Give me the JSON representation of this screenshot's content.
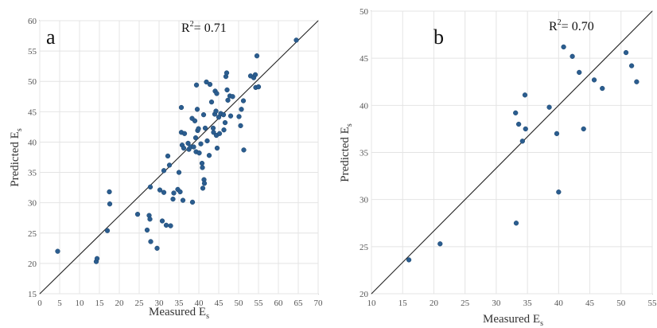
{
  "chart_data": [
    {
      "type": "scatter",
      "panel_label": "a",
      "annotation": {
        "r2_label": "R",
        "r2_sup": "2",
        "r2_value": "= 0.71"
      },
      "xlabel": "Measured",
      "xlabel_sub": "s",
      "xlabel_main": "E",
      "ylabel": "Predicted",
      "ylabel_main": "E",
      "ylabel_sub": "s",
      "xlim": [
        0,
        70
      ],
      "ylim": [
        15,
        60
      ],
      "xticks": [
        0,
        5,
        10,
        15,
        20,
        25,
        30,
        35,
        40,
        45,
        50,
        55,
        60,
        65,
        70
      ],
      "yticks": [
        15,
        20,
        25,
        30,
        35,
        40,
        45,
        50,
        55,
        60
      ],
      "grid": true,
      "reference_line": [
        [
          0,
          15
        ],
        [
          70,
          60
        ]
      ],
      "marker_color": "#2b5d8f",
      "points": [
        [
          4.5,
          22.0
        ],
        [
          14.2,
          20.3
        ],
        [
          14.4,
          20.8
        ],
        [
          17.0,
          25.4
        ],
        [
          17.5,
          31.8
        ],
        [
          17.6,
          29.8
        ],
        [
          24.6,
          28.1
        ],
        [
          27.0,
          25.5
        ],
        [
          27.5,
          27.9
        ],
        [
          27.7,
          27.3
        ],
        [
          27.8,
          32.6
        ],
        [
          27.9,
          23.6
        ],
        [
          29.5,
          22.5
        ],
        [
          30.2,
          32.1
        ],
        [
          31.2,
          31.7
        ],
        [
          30.8,
          27.0
        ],
        [
          31.2,
          35.3
        ],
        [
          31.8,
          26.3
        ],
        [
          32.2,
          37.7
        ],
        [
          32.6,
          36.2
        ],
        [
          32.9,
          26.2
        ],
        [
          33.7,
          31.6
        ],
        [
          33.5,
          30.6
        ],
        [
          34.7,
          32.2
        ],
        [
          35.0,
          35.0
        ],
        [
          35.3,
          31.8
        ],
        [
          35.6,
          45.7
        ],
        [
          35.6,
          41.6
        ],
        [
          35.8,
          39.5
        ],
        [
          36.0,
          30.4
        ],
        [
          36.2,
          39.0
        ],
        [
          36.4,
          41.4
        ],
        [
          37.3,
          39.8
        ],
        [
          37.5,
          38.8
        ],
        [
          37.9,
          39.2
        ],
        [
          38.3,
          43.9
        ],
        [
          38.4,
          30.1
        ],
        [
          38.7,
          39.2
        ],
        [
          39.0,
          43.5
        ],
        [
          39.2,
          40.7
        ],
        [
          39.4,
          49.4
        ],
        [
          39.3,
          38.4
        ],
        [
          39.6,
          45.4
        ],
        [
          39.7,
          41.9
        ],
        [
          39.9,
          42.2
        ],
        [
          40.1,
          38.2
        ],
        [
          40.5,
          39.7
        ],
        [
          40.8,
          36.5
        ],
        [
          40.9,
          35.8
        ],
        [
          41.0,
          32.4
        ],
        [
          41.2,
          44.5
        ],
        [
          41.3,
          33.8
        ],
        [
          41.4,
          33.2
        ],
        [
          41.6,
          42.3
        ],
        [
          41.9,
          49.9
        ],
        [
          42.1,
          40.2
        ],
        [
          42.6,
          37.8
        ],
        [
          42.8,
          49.5
        ],
        [
          43.2,
          46.6
        ],
        [
          43.6,
          42.3
        ],
        [
          43.7,
          41.6
        ],
        [
          44.0,
          44.6
        ],
        [
          44.1,
          48.4
        ],
        [
          44.3,
          45.1
        ],
        [
          44.4,
          41.1
        ],
        [
          44.5,
          48.0
        ],
        [
          44.6,
          39.0
        ],
        [
          45.0,
          44.1
        ],
        [
          45.5,
          44.7
        ],
        [
          45.2,
          41.4
        ],
        [
          46.2,
          44.5
        ],
        [
          46.3,
          42.0
        ],
        [
          46.6,
          43.2
        ],
        [
          46.8,
          50.8
        ],
        [
          47.0,
          51.4
        ],
        [
          47.1,
          48.6
        ],
        [
          47.3,
          46.9
        ],
        [
          47.8,
          47.6
        ],
        [
          48.0,
          44.3
        ],
        [
          48.5,
          47.5
        ],
        [
          50.1,
          44.2
        ],
        [
          50.5,
          42.7
        ],
        [
          50.7,
          45.4
        ],
        [
          51.2,
          46.8
        ],
        [
          51.3,
          38.7
        ],
        [
          53.0,
          50.9
        ],
        [
          53.8,
          50.6
        ],
        [
          54.2,
          51.1
        ],
        [
          54.3,
          49.0
        ],
        [
          54.6,
          54.2
        ],
        [
          55.0,
          49.1
        ],
        [
          64.5,
          56.8
        ]
      ]
    },
    {
      "type": "scatter",
      "panel_label": "b",
      "annotation": {
        "r2_label": "R",
        "r2_sup": "2",
        "r2_value": "= 0.70"
      },
      "xlabel": "Measured",
      "xlabel_sub": "s",
      "xlabel_main": "E",
      "ylabel": "Predicted",
      "ylabel_main": "E",
      "ylabel_sub": "s",
      "xlim": [
        10,
        55
      ],
      "ylim": [
        20,
        50
      ],
      "xticks": [
        10,
        15,
        20,
        25,
        30,
        35,
        40,
        45,
        50,
        55
      ],
      "yticks": [
        20,
        25,
        30,
        35,
        40,
        45,
        50
      ],
      "grid": true,
      "reference_line": [
        [
          10,
          20
        ],
        [
          55,
          50
        ]
      ],
      "marker_color": "#2b5d8f",
      "points": [
        [
          16.0,
          23.6
        ],
        [
          21.0,
          25.3
        ],
        [
          33.2,
          27.5
        ],
        [
          33.1,
          39.2
        ],
        [
          33.6,
          38.0
        ],
        [
          34.2,
          36.2
        ],
        [
          34.6,
          41.1
        ],
        [
          34.7,
          37.5
        ],
        [
          38.5,
          39.8
        ],
        [
          39.7,
          37.0
        ],
        [
          40.0,
          30.8
        ],
        [
          40.8,
          46.2
        ],
        [
          42.2,
          45.2
        ],
        [
          43.3,
          43.5
        ],
        [
          44.0,
          37.5
        ],
        [
          45.7,
          42.7
        ],
        [
          47.0,
          41.8
        ],
        [
          50.8,
          45.6
        ],
        [
          51.7,
          44.2
        ],
        [
          52.5,
          42.5
        ]
      ]
    }
  ]
}
